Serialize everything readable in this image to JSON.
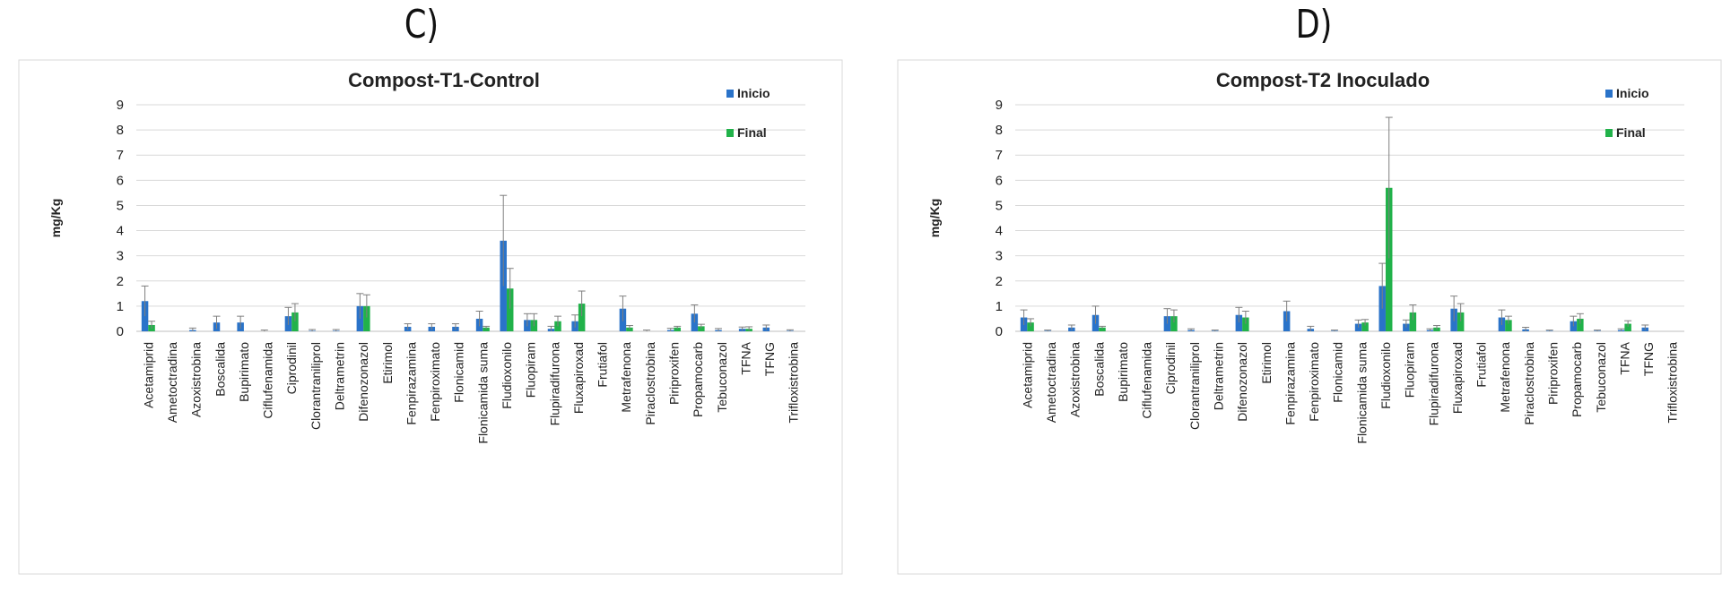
{
  "panels": {
    "left_label": "C)",
    "right_label": "D)"
  },
  "colors": {
    "inicio": "#2a73c9",
    "final": "#21b24a",
    "grid": "#d9d9d9",
    "error": "#7f7f7f"
  },
  "chart_data": [
    {
      "type": "bar",
      "title": "Compost-T1-Control",
      "ylabel": "mg/Kg",
      "xlabel": "",
      "ylim": [
        0,
        9
      ],
      "yticks": [
        0,
        1,
        2,
        3,
        4,
        5,
        6,
        7,
        8,
        9
      ],
      "grid": true,
      "legend": "top-right",
      "categories": [
        "Acetamiprid",
        "Ametoctradina",
        "Azoxistrobina",
        "Boscalida",
        "Bupirimato",
        "Ciflufenamida",
        "Ciprodinil",
        "Clorantraniliprol",
        "Deltrametrin",
        "Difenozonazol",
        "Etirimol",
        "Fenpirazamina",
        "Fenpiroximato",
        "Flonicamid",
        "Flonicamida suma",
        "Fludioxonilo",
        "Fluopiram",
        "Flupiradifurona",
        "Fluxapiroxad",
        "Frutiafol",
        "Metrafenona",
        "Piraclostrobina",
        "Piriproxifen",
        "Propamocarb",
        "Tebuconazol",
        "TFNA",
        "TFNG",
        "Trifloxistrobina"
      ],
      "series": [
        {
          "name": "Inicio",
          "values": [
            1.2,
            0,
            0.05,
            0.35,
            0.35,
            0,
            0.6,
            0.02,
            0.02,
            1.0,
            0,
            0.18,
            0.18,
            0.18,
            0.5,
            3.6,
            0.45,
            0.1,
            0.4,
            0,
            0.9,
            0,
            0.05,
            0.7,
            0.05,
            0.1,
            0.15,
            0.02
          ],
          "errors": [
            0.6,
            0,
            0.08,
            0.25,
            0.25,
            0.05,
            0.35,
            0.05,
            0.05,
            0.5,
            0,
            0.12,
            0.12,
            0.12,
            0.3,
            1.8,
            0.25,
            0.1,
            0.25,
            0,
            0.5,
            0.05,
            0.07,
            0.35,
            0.06,
            0.07,
            0.1,
            0.04
          ]
        },
        {
          "name": "Final",
          "values": [
            0.25,
            0,
            0,
            0,
            0,
            0,
            0.75,
            0,
            0,
            1.0,
            0,
            0,
            0,
            0,
            0.15,
            1.7,
            0.45,
            0.4,
            1.1,
            0,
            0.15,
            0,
            0.15,
            0.2,
            0,
            0.1,
            0,
            0
          ],
          "errors": [
            0.15,
            0,
            0,
            0,
            0,
            0,
            0.35,
            0,
            0,
            0.45,
            0,
            0,
            0,
            0,
            0.05,
            0.8,
            0.25,
            0.2,
            0.5,
            0,
            0.08,
            0,
            0.05,
            0.08,
            0,
            0.08,
            0,
            0
          ]
        }
      ]
    },
    {
      "type": "bar",
      "title": "Compost-T2 Inoculado",
      "ylabel": "mg/Kg",
      "xlabel": "",
      "ylim": [
        0,
        9
      ],
      "yticks": [
        0,
        1,
        2,
        3,
        4,
        5,
        6,
        7,
        8,
        9
      ],
      "grid": true,
      "legend": "top-right",
      "categories": [
        "Acetamiprid",
        "Ametoctradina",
        "Azoxistrobina",
        "Boscalida",
        "Bupirimato",
        "Ciflufenamida",
        "Ciprodinil",
        "Clorantraniliprol",
        "Deltrametrin",
        "Difenozonazol",
        "Etirimol",
        "Fenpirazamina",
        "Fenpiroximato",
        "Flonicamid",
        "Flonicamida suma",
        "Fludioxonilo",
        "Fluopiram",
        "Flupiradifurona",
        "Fluxapiroxad",
        "Frutiafol",
        "Metrafenona",
        "Piraclostrobina",
        "Piriproxifen",
        "Propamocarb",
        "Tebuconazol",
        "TFNA",
        "TFNG",
        "Trifloxistrobina"
      ],
      "series": [
        {
          "name": "Inicio",
          "values": [
            0.55,
            0.02,
            0.15,
            0.65,
            0,
            0,
            0.6,
            0.05,
            0.02,
            0.65,
            0,
            0.8,
            0.1,
            0.02,
            0.3,
            1.8,
            0.3,
            0.05,
            0.9,
            0,
            0.55,
            0.08,
            0.02,
            0.4,
            0.02,
            0.05,
            0.15,
            0
          ],
          "errors": [
            0.3,
            0.03,
            0.1,
            0.35,
            0,
            0,
            0.3,
            0.05,
            0.03,
            0.3,
            0,
            0.4,
            0.1,
            0.03,
            0.15,
            0.9,
            0.15,
            0.05,
            0.5,
            0,
            0.3,
            0.08,
            0.03,
            0.2,
            0.03,
            0.05,
            0.1,
            0
          ]
        },
        {
          "name": "Final",
          "values": [
            0.35,
            0,
            0,
            0.15,
            0,
            0,
            0.6,
            0,
            0,
            0.55,
            0,
            0,
            0,
            0,
            0.35,
            5.7,
            0.75,
            0.15,
            0.75,
            0,
            0.45,
            0,
            0,
            0.5,
            0,
            0.3,
            0,
            0
          ],
          "errors": [
            0.15,
            0,
            0,
            0.05,
            0,
            0,
            0.25,
            0,
            0,
            0.25,
            0,
            0,
            0,
            0,
            0.12,
            2.8,
            0.3,
            0.08,
            0.35,
            0,
            0.15,
            0,
            0,
            0.2,
            0,
            0.12,
            0,
            0
          ]
        }
      ]
    }
  ]
}
